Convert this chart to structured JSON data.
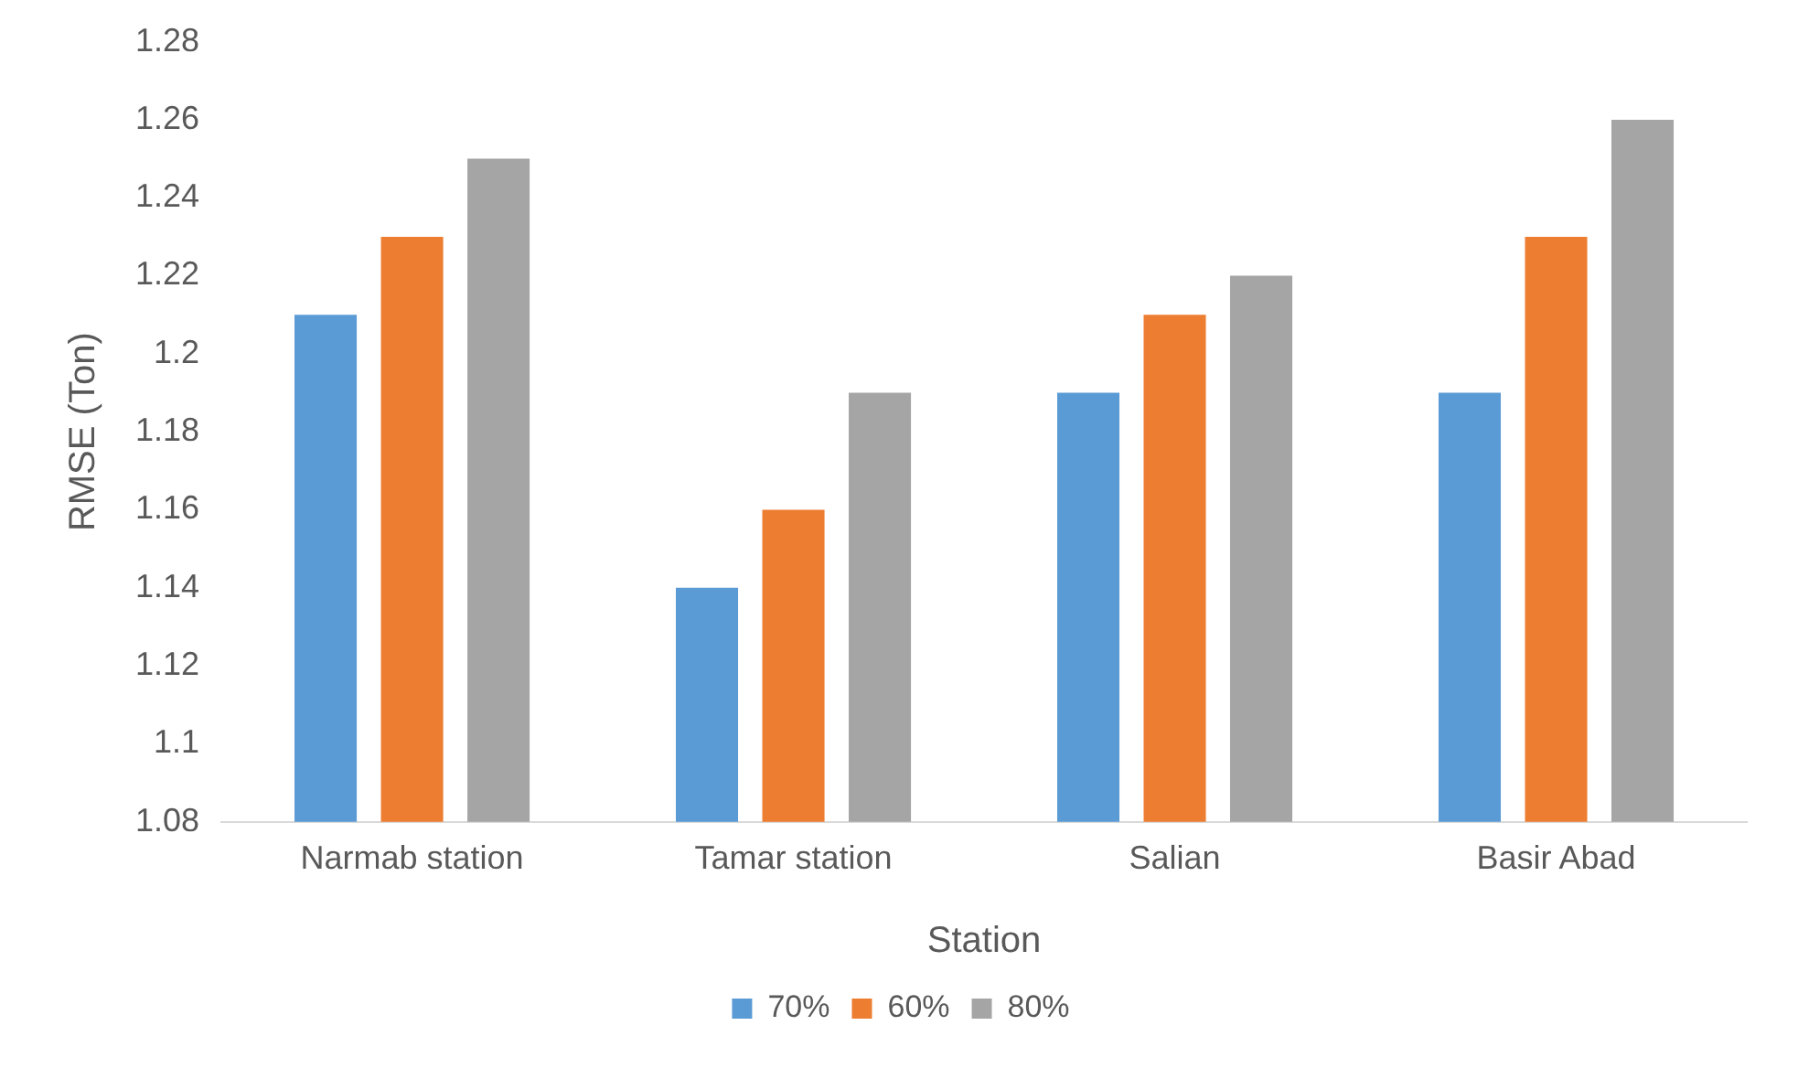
{
  "chart_data": {
    "type": "bar",
    "xlabel": "Station",
    "ylabel": "RMSE (Ton)",
    "categories": [
      "Narmab station",
      "Tamar station",
      "Salian",
      "Basir Abad"
    ],
    "series": [
      {
        "name": "70%",
        "color": "#5b9bd5",
        "values": [
          1.21,
          1.14,
          1.19,
          1.19
        ]
      },
      {
        "name": "60%",
        "color": "#ed7d31",
        "values": [
          1.23,
          1.16,
          1.21,
          1.23
        ]
      },
      {
        "name": "80%",
        "color": "#a5a5a5",
        "values": [
          1.25,
          1.19,
          1.22,
          1.26
        ]
      }
    ],
    "ylim": [
      1.08,
      1.28
    ],
    "yticks": [
      1.08,
      1.1,
      1.12,
      1.14,
      1.16,
      1.18,
      1.2,
      1.22,
      1.24,
      1.26,
      1.28
    ],
    "grid": false,
    "legend": "bottom"
  }
}
